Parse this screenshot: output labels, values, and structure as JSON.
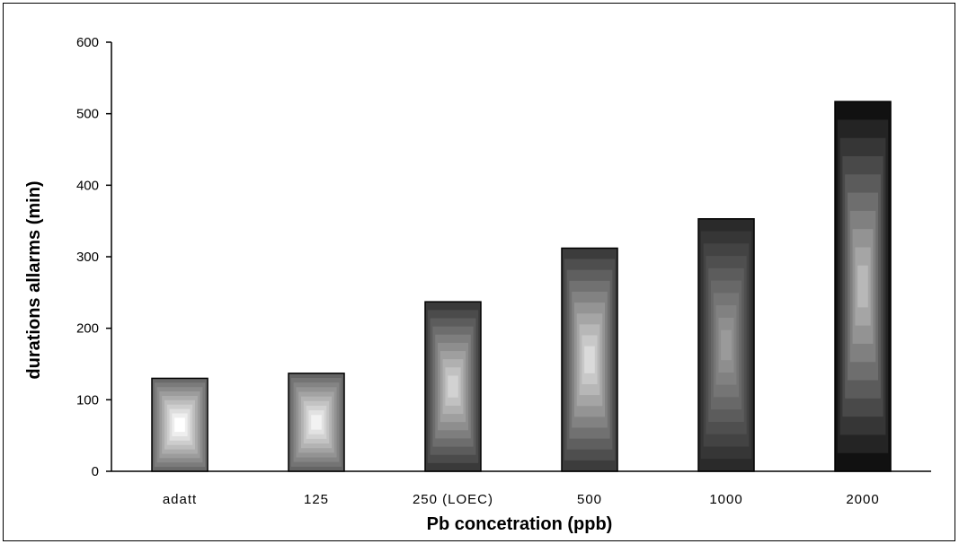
{
  "chart_data": {
    "type": "bar",
    "title": "",
    "xlabel": "Pb concetration (ppb)",
    "ylabel": "durations allarms (min)",
    "categories": [
      "adatt",
      "125",
      "250 (LOEC)",
      "500",
      "1000",
      "2000"
    ],
    "values": [
      130,
      137,
      237,
      312,
      353,
      517
    ],
    "ylim": [
      0,
      600
    ],
    "yticks": [
      "0",
      "100",
      "200",
      "300",
      "400",
      "500",
      "600"
    ],
    "grid": false,
    "legend": "none",
    "bar_edge_colors": [
      "#6a6a6a",
      "#646464",
      "#3a3a3a",
      "#3c3c3c",
      "#2a2a2a",
      "#111111"
    ],
    "bar_center_colors": [
      "#ffffff",
      "#f2f2f2",
      "#d2d2d2",
      "#dadada",
      "#9a9a9a",
      "#b8b8b8"
    ]
  }
}
